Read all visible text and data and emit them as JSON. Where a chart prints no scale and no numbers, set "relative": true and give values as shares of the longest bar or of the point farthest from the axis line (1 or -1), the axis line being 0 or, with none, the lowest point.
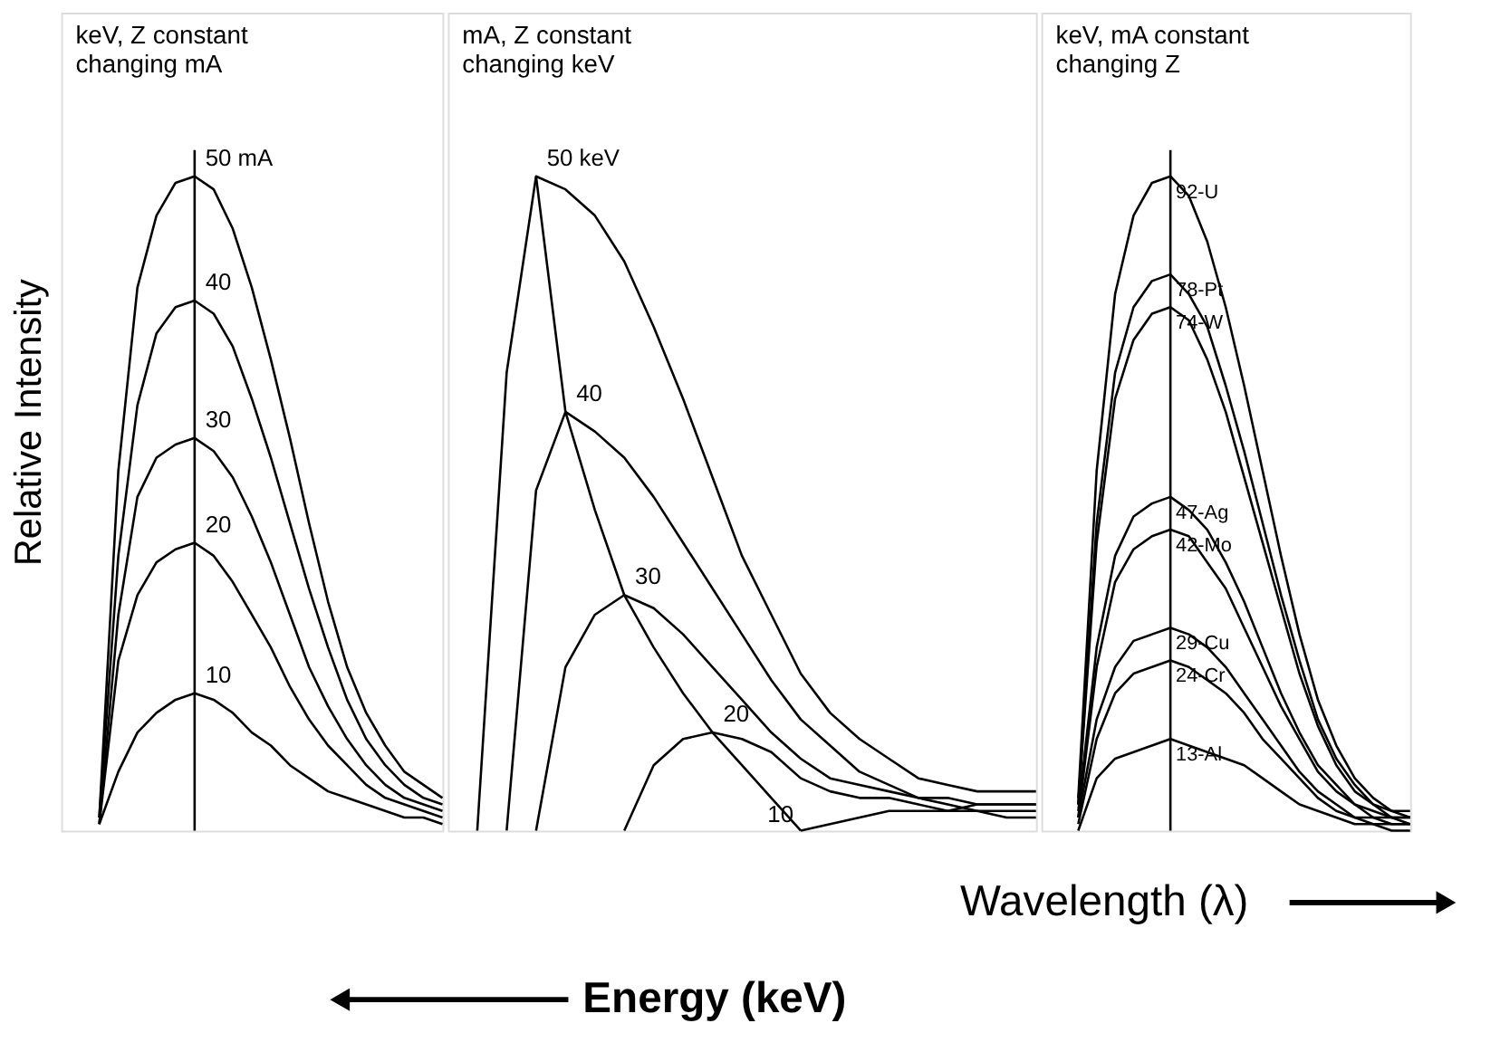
{
  "chart_data": [
    {
      "type": "line",
      "title": "keV, Z constant\nchanging mA",
      "ylabel": "Relative Intensity",
      "relative": true,
      "tick_labels": false,
      "categories": [
        null,
        null,
        null,
        null,
        null,
        null,
        null,
        null,
        null,
        null,
        null,
        null,
        null,
        null,
        null,
        null,
        null,
        null,
        null,
        null,
        null
      ],
      "series": [
        {
          "name": "50 mA",
          "color": "#000000",
          "values": [
            null,
            null,
            0.02,
            0.55,
            0.83,
            0.94,
            0.99,
            1.0,
            0.98,
            0.92,
            0.83,
            0.72,
            0.6,
            0.47,
            0.35,
            0.25,
            0.18,
            0.13,
            0.09,
            0.07,
            0.05
          ]
        },
        {
          "name": "40",
          "color": "#000000",
          "values": [
            null,
            null,
            0.02,
            0.42,
            0.65,
            0.76,
            0.8,
            0.81,
            0.79,
            0.74,
            0.66,
            0.57,
            0.47,
            0.37,
            0.28,
            0.2,
            0.14,
            0.1,
            0.07,
            0.05,
            0.04
          ]
        },
        {
          "name": "30",
          "color": "#000000",
          "values": [
            null,
            null,
            0.01,
            0.33,
            0.51,
            0.57,
            0.59,
            0.6,
            0.58,
            0.54,
            0.48,
            0.41,
            0.33,
            0.25,
            0.19,
            0.14,
            0.1,
            0.07,
            0.05,
            0.04,
            0.03
          ]
        },
        {
          "name": "20",
          "color": "#000000",
          "values": [
            null,
            null,
            0.01,
            0.26,
            0.36,
            0.41,
            0.43,
            0.44,
            0.42,
            0.38,
            0.33,
            0.28,
            0.22,
            0.17,
            0.13,
            0.1,
            0.07,
            0.05,
            0.04,
            0.03,
            0.02
          ]
        },
        {
          "name": "10",
          "color": "#000000",
          "values": [
            null,
            null,
            0.01,
            0.09,
            0.15,
            0.18,
            0.2,
            0.21,
            0.2,
            0.18,
            0.15,
            0.13,
            0.1,
            0.08,
            0.06,
            0.05,
            0.04,
            0.03,
            0.02,
            0.02,
            0.01
          ]
        }
      ]
    },
    {
      "type": "line",
      "title": "mA, Z constant\nchanging keV",
      "xlabel": "Wavelength (λ)",
      "annotations": [
        "Energy (keV)"
      ],
      "relative": true,
      "tick_labels": false,
      "categories": [
        null,
        null,
        null,
        null,
        null,
        null,
        null,
        null,
        null,
        null,
        null,
        null,
        null,
        null,
        null,
        null,
        null,
        null,
        null,
        null,
        null
      ],
      "series": [
        {
          "name": "50 keV",
          "color": "#000000",
          "values": [
            null,
            0.0,
            0.7,
            1.0,
            0.98,
            0.94,
            0.87,
            0.77,
            0.66,
            0.54,
            0.42,
            0.33,
            0.24,
            0.18,
            0.14,
            0.11,
            0.08,
            0.07,
            0.06,
            0.06,
            0.06
          ]
        },
        {
          "name": "40",
          "color": "#000000",
          "values": [
            null,
            null,
            0.0,
            0.52,
            0.64,
            0.61,
            0.57,
            0.51,
            0.44,
            0.37,
            0.3,
            0.23,
            0.17,
            0.13,
            0.09,
            0.07,
            0.05,
            0.05,
            0.04,
            0.04,
            0.04
          ]
        },
        {
          "name": "30",
          "color": "#000000",
          "values": [
            null,
            null,
            null,
            0.0,
            0.25,
            0.33,
            0.36,
            0.34,
            0.3,
            0.25,
            0.2,
            0.15,
            0.11,
            0.08,
            0.07,
            0.06,
            0.05,
            0.04,
            0.03,
            0.03,
            0.03
          ]
        },
        {
          "name": "20",
          "color": "#000000",
          "values": [
            null,
            null,
            null,
            null,
            null,
            null,
            0.0,
            0.1,
            0.14,
            0.15,
            0.14,
            0.12,
            0.08,
            0.06,
            0.05,
            0.05,
            0.04,
            0.03,
            0.03,
            0.02,
            0.02
          ]
        },
        {
          "name": "10",
          "color": "#000000",
          "values": [
            null,
            null,
            null,
            null,
            null,
            null,
            null,
            null,
            null,
            null,
            null,
            null,
            0.0,
            0.01,
            0.02,
            0.03,
            0.03,
            0.03,
            0.04,
            0.04,
            0.04
          ]
        },
        {
          "color": "#000000",
          "values": [
            null,
            null,
            null,
            1.0,
            0.64,
            0.49,
            0.36,
            0.28,
            0.21,
            0.15,
            0.1,
            0.05,
            0.0,
            null,
            null,
            null,
            null,
            null,
            null,
            null,
            null
          ]
        }
      ]
    },
    {
      "type": "line",
      "title": "keV, mA constant\nchanging Z",
      "relative": true,
      "tick_labels": false,
      "categories": [
        null,
        null,
        null,
        null,
        null,
        null,
        null,
        null,
        null,
        null,
        null,
        null,
        null,
        null,
        null,
        null,
        null,
        null,
        null,
        null,
        null
      ],
      "series": [
        {
          "name": "92-U",
          "color": "#000000",
          "values": [
            null,
            null,
            0.05,
            0.55,
            0.82,
            0.94,
            0.99,
            1.0,
            0.97,
            0.9,
            0.8,
            0.68,
            0.55,
            0.42,
            0.3,
            0.2,
            0.13,
            0.08,
            0.05,
            0.03,
            0.02
          ]
        },
        {
          "name": "78-Pt",
          "color": "#000000",
          "values": [
            null,
            null,
            0.04,
            0.47,
            0.7,
            0.8,
            0.84,
            0.85,
            0.82,
            0.77,
            0.68,
            0.58,
            0.47,
            0.36,
            0.26,
            0.17,
            0.11,
            0.07,
            0.04,
            0.03,
            0.03
          ]
        },
        {
          "name": "74-W",
          "color": "#000000",
          "values": [
            null,
            null,
            0.04,
            0.44,
            0.66,
            0.75,
            0.79,
            0.8,
            0.78,
            0.72,
            0.64,
            0.54,
            0.44,
            0.34,
            0.24,
            0.16,
            0.1,
            0.06,
            0.04,
            0.02,
            0.02
          ]
        },
        {
          "name": "47-Ag",
          "color": "#000000",
          "values": [
            null,
            null,
            0.03,
            0.28,
            0.42,
            0.48,
            0.5,
            0.51,
            0.49,
            0.46,
            0.41,
            0.35,
            0.28,
            0.21,
            0.15,
            0.1,
            0.07,
            0.04,
            0.03,
            0.02,
            0.01
          ]
        },
        {
          "name": "42-Mo",
          "color": "#000000",
          "values": [
            null,
            null,
            0.02,
            0.25,
            0.38,
            0.43,
            0.45,
            0.46,
            0.45,
            0.41,
            0.37,
            0.31,
            0.25,
            0.19,
            0.14,
            0.09,
            0.06,
            0.04,
            0.02,
            0.01,
            0.01
          ]
        },
        {
          "name": "29-Cu",
          "color": "#000000",
          "values": [
            null,
            null,
            0.02,
            0.17,
            0.25,
            0.29,
            0.3,
            0.31,
            0.3,
            0.28,
            0.25,
            0.21,
            0.17,
            0.13,
            0.09,
            0.06,
            0.04,
            0.02,
            0.02,
            0.02,
            0.02
          ]
        },
        {
          "name": "24-Cr",
          "color": "#000000",
          "values": [
            null,
            null,
            0.01,
            0.14,
            0.21,
            0.24,
            0.25,
            0.26,
            0.25,
            0.23,
            0.21,
            0.18,
            0.14,
            0.11,
            0.08,
            0.05,
            0.03,
            0.02,
            0.01,
            0.01,
            0.01
          ]
        },
        {
          "name": "13-Al",
          "color": "#000000",
          "values": [
            null,
            null,
            0.0,
            0.08,
            0.11,
            0.12,
            0.13,
            0.14,
            0.13,
            0.12,
            0.11,
            0.1,
            0.08,
            0.06,
            0.04,
            0.03,
            0.02,
            0.01,
            0.01,
            0.0,
            0.0
          ]
        }
      ]
    }
  ]
}
